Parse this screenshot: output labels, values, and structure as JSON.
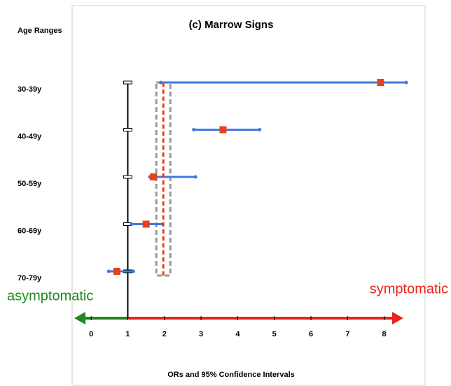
{
  "chart_data": {
    "type": "forest",
    "title": "(c) Marrow Signs",
    "y_label": "Age Ranges",
    "x_label": "ORs and 95% Confidence Intervals",
    "categories": [
      "30-39y",
      "40-49y",
      "50-59y",
      "60-69y",
      "70-79y"
    ],
    "values": [
      7.9,
      3.6,
      1.7,
      1.5,
      0.7
    ],
    "ci_lower": [
      1.9,
      2.8,
      1.6,
      1.1,
      0.48
    ],
    "ci_upper": [
      8.6,
      4.6,
      2.85,
      1.95,
      1.15
    ],
    "line_color": "#3d7ae0",
    "point_color": "#e8401c",
    "null_line": 1,
    "threshold_line": 1.97,
    "xlim": [
      -0.5,
      8.6
    ],
    "xticks": [
      0,
      1,
      2,
      3,
      4,
      5,
      6,
      7,
      8
    ],
    "annotations": [
      {
        "text": "asymptomatic",
        "color": "#1e8a1e"
      },
      {
        "text": "symptomatic",
        "color": "#e8231c"
      }
    ]
  }
}
